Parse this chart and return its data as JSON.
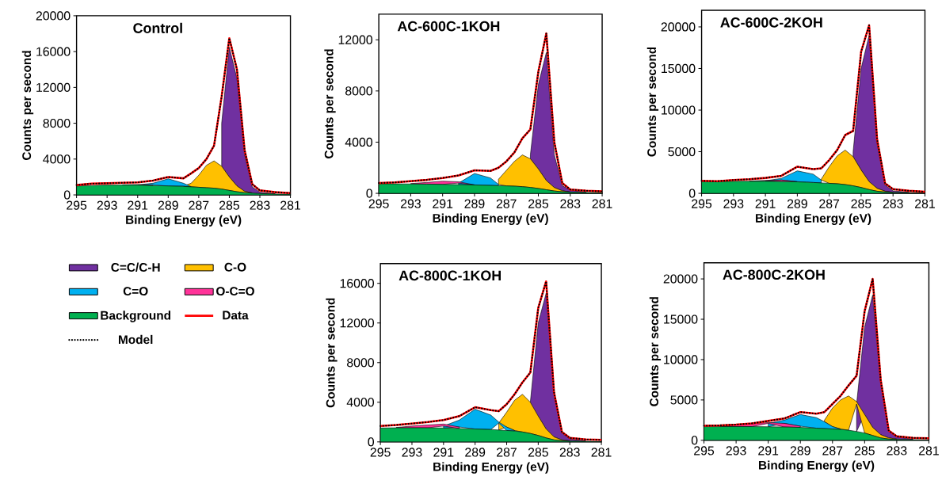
{
  "chart_data": [
    {
      "type": "area",
      "title": "Control",
      "xlabel": "Binding Energy (eV)",
      "ylabel": "Counts per second",
      "xlim": [
        295,
        281
      ],
      "xticks": [
        295,
        293,
        291,
        289,
        287,
        285,
        283,
        281
      ],
      "ylim": [
        0,
        20000
      ],
      "yticks": [
        0,
        4000,
        8000,
        12000,
        16000,
        20000
      ],
      "legend": "bottom",
      "x": [
        295,
        294,
        293,
        292,
        291,
        290,
        289,
        288,
        287.5,
        287,
        286.5,
        286,
        285.5,
        285,
        284.5,
        284,
        283.5,
        283,
        282,
        281
      ],
      "series": [
        {
          "name": "C=C/C-H",
          "color": "#7030a0",
          "values": [
            null,
            null,
            null,
            null,
            null,
            null,
            null,
            null,
            null,
            null,
            null,
            null,
            8000,
            16500,
            13000,
            4500,
            900,
            300,
            120,
            null
          ]
        },
        {
          "name": "C-O",
          "color": "#ffc000",
          "values": [
            null,
            null,
            null,
            null,
            null,
            null,
            null,
            980,
            1300,
            2200,
            3300,
            3800,
            3200,
            2000,
            1000,
            400,
            220,
            null,
            null,
            null
          ]
        },
        {
          "name": "C=O",
          "color": "#00b0f0",
          "values": [
            null,
            null,
            null,
            null,
            1120,
            1300,
            1800,
            1300,
            920,
            null,
            null,
            null,
            null,
            null,
            null,
            null,
            null,
            null,
            null,
            null
          ]
        },
        {
          "name": "O-C=O",
          "color": "#ff3399",
          "values": [
            null,
            null,
            null,
            1130,
            1150,
            1100,
            null,
            null,
            null,
            null,
            null,
            null,
            null,
            null,
            null,
            null,
            null,
            null,
            null,
            null
          ]
        },
        {
          "name": "Background",
          "color": "#00b050",
          "values": [
            1000,
            1050,
            1100,
            1100,
            1100,
            1050,
            1000,
            950,
            900,
            850,
            800,
            750,
            650,
            500,
            350,
            250,
            200,
            150,
            100,
            80
          ]
        },
        {
          "name": "Data",
          "type": "line",
          "color": "#ff0000",
          "line_style": "solid",
          "values": [
            1100,
            1250,
            1300,
            1350,
            1400,
            1600,
            2000,
            1850,
            2400,
            3000,
            4000,
            5500,
            11000,
            17500,
            14000,
            5000,
            1200,
            500,
            300,
            200
          ]
        },
        {
          "name": "Model",
          "type": "line",
          "color": "#000000",
          "line_style": "dotted",
          "values": [
            1100,
            1250,
            1300,
            1350,
            1400,
            1600,
            2000,
            1850,
            2400,
            3000,
            4000,
            5500,
            11000,
            17500,
            14000,
            5000,
            1200,
            500,
            300,
            200
          ]
        }
      ]
    },
    {
      "type": "area",
      "title": "AC-600C-1KOH",
      "xlabel": "Binding Energy (eV)",
      "ylabel": "Counts per second",
      "xlim": [
        295,
        281
      ],
      "xticks": [
        295,
        293,
        291,
        289,
        287,
        285,
        283,
        281
      ],
      "ylim": [
        0,
        14000
      ],
      "yticks": [
        0,
        4000,
        8000,
        12000
      ],
      "x": [
        295,
        294,
        293,
        292,
        291,
        290,
        289,
        288,
        287.5,
        287,
        286.5,
        286,
        285.5,
        285,
        284.5,
        284,
        283.5,
        283,
        282,
        281
      ],
      "series": [
        {
          "type": "area",
          "color": "#7030a0",
          "values": [
            null,
            null,
            null,
            null,
            null,
            null,
            null,
            null,
            null,
            null,
            null,
            null,
            3000,
            8500,
            11000,
            3000,
            600,
            250,
            100,
            null
          ]
        },
        {
          "type": "area",
          "color": "#ffc000",
          "values": [
            null,
            null,
            null,
            null,
            null,
            null,
            null,
            null,
            1100,
            1800,
            2500,
            3000,
            2700,
            1900,
            1000,
            450,
            200,
            100,
            null,
            null
          ]
        },
        {
          "type": "area",
          "color": "#00b0f0",
          "values": [
            null,
            null,
            null,
            null,
            null,
            800,
            1550,
            1200,
            700,
            null,
            null,
            null,
            null,
            null,
            null,
            null,
            null,
            null,
            null,
            null
          ]
        },
        {
          "type": "area",
          "color": "#ff3399",
          "values": [
            null,
            null,
            760,
            850,
            950,
            900,
            660,
            null,
            null,
            null,
            null,
            null,
            null,
            null,
            null,
            null,
            null,
            null,
            null,
            null
          ]
        },
        {
          "type": "area",
          "color": "#00b050",
          "values": [
            750,
            740,
            730,
            720,
            700,
            680,
            650,
            620,
            600,
            580,
            560,
            520,
            460,
            380,
            280,
            180,
            120,
            90,
            70,
            60
          ]
        },
        {
          "type": "line",
          "color": "#ff0000",
          "line_style": "solid",
          "values": [
            800,
            850,
            950,
            1050,
            1200,
            1400,
            1800,
            1750,
            2000,
            2500,
            3200,
            4300,
            5000,
            9500,
            12500,
            4000,
            800,
            300,
            200,
            150
          ]
        },
        {
          "type": "line",
          "color": "#000000",
          "line_style": "dotted",
          "values": [
            800,
            850,
            950,
            1050,
            1200,
            1400,
            1800,
            1750,
            2000,
            2500,
            3200,
            4300,
            5000,
            9500,
            12500,
            4000,
            800,
            300,
            200,
            150
          ]
        }
      ]
    },
    {
      "type": "area",
      "title": "AC-600C-2KOH",
      "xlabel": "Binding Energy (eV)",
      "ylabel": "Counts per second",
      "xlim": [
        295,
        281
      ],
      "xticks": [
        295,
        293,
        291,
        289,
        287,
        285,
        283,
        281
      ],
      "ylim": [
        0,
        22000
      ],
      "yticks": [
        0,
        5000,
        10000,
        15000,
        20000
      ],
      "x": [
        295,
        294,
        293,
        292,
        291,
        290,
        289,
        288,
        287.5,
        287,
        286.5,
        286,
        285.5,
        285,
        284.5,
        284,
        283.5,
        283,
        282,
        281
      ],
      "series": [
        {
          "type": "area",
          "color": "#7030a0",
          "values": [
            null,
            null,
            null,
            null,
            null,
            null,
            null,
            null,
            null,
            null,
            null,
            null,
            5000,
            15000,
            19000,
            6000,
            1000,
            300,
            120,
            null
          ]
        },
        {
          "type": "area",
          "color": "#ffc000",
          "values": [
            null,
            null,
            null,
            null,
            null,
            null,
            null,
            null,
            1700,
            3200,
            4500,
            5200,
            4400,
            2800,
            1400,
            600,
            250,
            120,
            null,
            null
          ]
        },
        {
          "type": "area",
          "color": "#00b0f0",
          "values": [
            null,
            null,
            null,
            null,
            1500,
            1800,
            2700,
            2300,
            1600,
            null,
            null,
            null,
            null,
            null,
            null,
            null,
            null,
            null,
            null,
            null
          ]
        },
        {
          "type": "area",
          "color": "#ff3399",
          "values": [
            null,
            null,
            null,
            1480,
            1550,
            1600,
            1400,
            null,
            null,
            null,
            null,
            null,
            null,
            null,
            null,
            null,
            null,
            null,
            null,
            null
          ]
        },
        {
          "type": "area",
          "color": "#00b050",
          "values": [
            1400,
            1420,
            1450,
            1450,
            1450,
            1420,
            1380,
            1300,
            1250,
            1200,
            1150,
            1050,
            900,
            700,
            450,
            250,
            150,
            100,
            80,
            60
          ]
        },
        {
          "type": "line",
          "color": "#ff0000",
          "line_style": "solid",
          "values": [
            1500,
            1450,
            1600,
            1700,
            1850,
            2100,
            3200,
            2900,
            3000,
            4000,
            5200,
            7000,
            7500,
            17000,
            20200,
            6500,
            1200,
            500,
            300,
            200
          ]
        },
        {
          "type": "line",
          "color": "#000000",
          "line_style": "dotted",
          "values": [
            1500,
            1450,
            1600,
            1700,
            1850,
            2100,
            3200,
            2900,
            3000,
            4000,
            5200,
            7000,
            7500,
            17000,
            20200,
            6500,
            1200,
            500,
            300,
            200
          ]
        }
      ]
    },
    {
      "type": "area",
      "title": "AC-800C-1KOH",
      "xlabel": "Binding Energy (eV)",
      "ylabel": "Counts per second",
      "xlim": [
        295,
        281
      ],
      "xticks": [
        295,
        293,
        291,
        289,
        287,
        285,
        283,
        281
      ],
      "ylim": [
        0,
        18000
      ],
      "yticks": [
        0,
        4000,
        8000,
        12000,
        16000
      ],
      "x": [
        295,
        294,
        293,
        292,
        291,
        290,
        289,
        288,
        287.5,
        287,
        286.5,
        286,
        285.5,
        285,
        284.5,
        284,
        283.5,
        283,
        282,
        281
      ],
      "series": [
        {
          "type": "area",
          "color": "#7030a0",
          "values": [
            null,
            null,
            null,
            null,
            null,
            null,
            null,
            null,
            null,
            null,
            null,
            null,
            4000,
            12000,
            15000,
            5000,
            900,
            300,
            100,
            null
          ]
        },
        {
          "type": "area",
          "color": "#ffc000",
          "values": [
            null,
            null,
            null,
            null,
            null,
            null,
            null,
            null,
            1900,
            3000,
            4200,
            4800,
            4000,
            2600,
            1300,
            500,
            200,
            100,
            null,
            null
          ]
        },
        {
          "type": "area",
          "color": "#00b0f0",
          "values": [
            null,
            null,
            null,
            null,
            1600,
            2200,
            3300,
            2700,
            2000,
            1500,
            1150,
            null,
            null,
            null,
            null,
            null,
            null,
            null,
            null,
            null
          ]
        },
        {
          "type": "area",
          "color": "#ff3399",
          "values": [
            null,
            1450,
            1600,
            1700,
            1800,
            1500,
            null,
            null,
            null,
            null,
            null,
            null,
            null,
            null,
            null,
            null,
            null,
            null,
            null,
            null
          ]
        },
        {
          "type": "area",
          "color": "#00b050",
          "values": [
            1400,
            1420,
            1420,
            1420,
            1400,
            1350,
            1300,
            1250,
            1200,
            1150,
            1100,
            1000,
            850,
            650,
            400,
            200,
            120,
            80,
            60,
            50
          ]
        },
        {
          "type": "line",
          "color": "#ff0000",
          "line_style": "solid",
          "values": [
            1600,
            1700,
            1850,
            2000,
            2200,
            2600,
            3500,
            3200,
            3100,
            3800,
            4800,
            6000,
            7000,
            13500,
            16200,
            5000,
            1000,
            400,
            250,
            200
          ]
        },
        {
          "type": "line",
          "color": "#000000",
          "line_style": "dotted",
          "values": [
            1600,
            1700,
            1850,
            2000,
            2200,
            2600,
            3500,
            3200,
            3100,
            3800,
            4800,
            6000,
            7000,
            13500,
            16200,
            5000,
            1000,
            400,
            250,
            200
          ]
        }
      ]
    },
    {
      "type": "area",
      "title": "AC-800C-2KOH",
      "xlabel": "Binding Energy (eV)",
      "ylabel": "Counts per second",
      "xlim": [
        295,
        281
      ],
      "xticks": [
        295,
        293,
        291,
        289,
        287,
        285,
        283,
        281
      ],
      "ylim": [
        0,
        22000
      ],
      "yticks": [
        0,
        5000,
        10000,
        15000,
        20000
      ],
      "x": [
        295,
        294,
        293,
        292,
        291,
        290,
        289,
        288,
        287.5,
        287,
        286.5,
        286,
        285.5,
        285,
        284.5,
        284,
        283.5,
        283,
        282,
        281
      ],
      "series": [
        {
          "type": "area",
          "color": "#7030a0",
          "values": [
            null,
            null,
            null,
            null,
            null,
            null,
            null,
            null,
            null,
            null,
            null,
            null,
            4500,
            14000,
            18000,
            7000,
            1200,
            400,
            150,
            null
          ]
        },
        {
          "type": "area",
          "color": "#ffc000",
          "values": [
            null,
            null,
            null,
            null,
            null,
            null,
            null,
            null,
            2500,
            4000,
            5000,
            5500,
            4800,
            3200,
            1600,
            700,
            300,
            150,
            null,
            null
          ]
        },
        {
          "type": "area",
          "color": "#00b0f0",
          "values": [
            null,
            null,
            null,
            null,
            2100,
            2500,
            3200,
            2800,
            2300,
            1700,
            1400,
            null,
            null,
            null,
            null,
            null,
            null,
            null,
            null,
            null
          ]
        },
        {
          "type": "area",
          "color": "#ff3399",
          "values": [
            null,
            1750,
            1900,
            2050,
            2200,
            2100,
            1750,
            null,
            null,
            null,
            null,
            null,
            null,
            null,
            null,
            null,
            null,
            null,
            null,
            null
          ]
        },
        {
          "type": "area",
          "color": "#00b050",
          "values": [
            1700,
            1700,
            1700,
            1700,
            1680,
            1650,
            1600,
            1500,
            1450,
            1400,
            1350,
            1250,
            1100,
            900,
            600,
            300,
            150,
            100,
            80,
            60
          ]
        },
        {
          "type": "line",
          "color": "#ff0000",
          "line_style": "solid",
          "values": [
            1800,
            1850,
            1950,
            2100,
            2400,
            2700,
            3500,
            3300,
            3500,
            4500,
            5500,
            6800,
            8000,
            16000,
            20000,
            7500,
            1200,
            500,
            300,
            250
          ]
        },
        {
          "type": "line",
          "color": "#000000",
          "line_style": "dotted",
          "values": [
            1800,
            1850,
            1950,
            2100,
            2400,
            2700,
            3500,
            3300,
            3500,
            4500,
            5500,
            6800,
            8000,
            16000,
            20000,
            7500,
            1200,
            500,
            300,
            250
          ]
        }
      ]
    }
  ]
}
